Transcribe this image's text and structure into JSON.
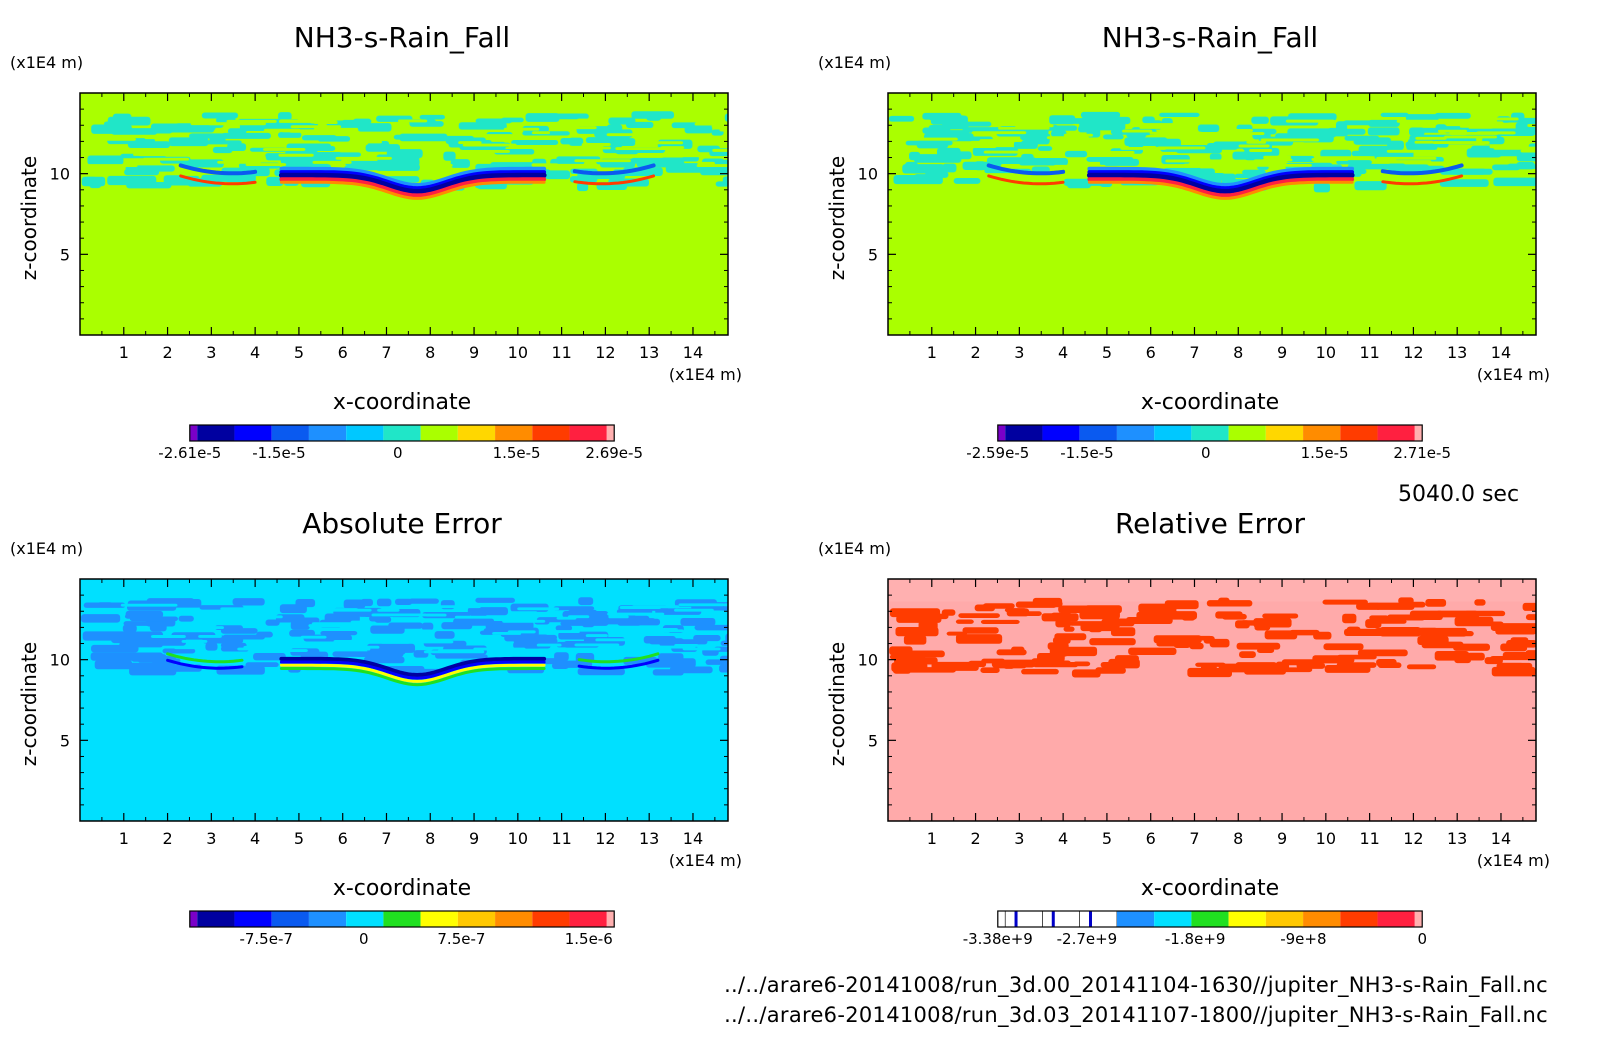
{
  "time_label": "5040.0 sec",
  "footer": {
    "file1": "../../arare6-20141008/run_3d.00_20141104-1630//jupiter_NH3-s-Rain_Fall.nc",
    "file2": "../../arare6-20141008/run_3d.03_20141107-1800//jupiter_NH3-s-Rain_Fall.nc"
  },
  "chart_data": [
    {
      "type": "heatmap",
      "title": "NH3-s-Rain_Fall",
      "xlabel": "x-coordinate",
      "ylabel": "z-coordinate",
      "x_unit": "(x1E4 m)",
      "y_unit": "(x1E4 m)",
      "x_ticks": [
        "1",
        "2",
        "3",
        "4",
        "5",
        "6",
        "7",
        "8",
        "9",
        "10",
        "11",
        "12",
        "13",
        "14"
      ],
      "y_ticks": [
        "5",
        "10"
      ],
      "xlim": [
        0,
        14.8
      ],
      "ylim": [
        0,
        15
      ],
      "background_color": "#aaff00",
      "colorbar": {
        "colors": [
          "#7a00c8",
          "#0000a0",
          "#0000ff",
          "#0a5af0",
          "#1e90ff",
          "#00c8ff",
          "#20e6c8",
          "#aaff00",
          "#ffd700",
          "#ff8c00",
          "#ff3c00",
          "#ff2040",
          "#ffb0b0"
        ],
        "labels": [
          "-2.61e-5",
          "-1.5e-5",
          "0",
          "1.5e-5",
          "2.69e-5"
        ]
      }
    },
    {
      "type": "heatmap",
      "title": "NH3-s-Rain_Fall",
      "xlabel": "x-coordinate",
      "ylabel": "z-coordinate",
      "x_unit": "(x1E4 m)",
      "y_unit": "(x1E4 m)",
      "x_ticks": [
        "1",
        "2",
        "3",
        "4",
        "5",
        "6",
        "7",
        "8",
        "9",
        "10",
        "11",
        "12",
        "13",
        "14"
      ],
      "y_ticks": [
        "5",
        "10"
      ],
      "xlim": [
        0,
        14.8
      ],
      "ylim": [
        0,
        15
      ],
      "background_color": "#aaff00",
      "colorbar": {
        "colors": [
          "#7a00c8",
          "#0000a0",
          "#0000ff",
          "#0a5af0",
          "#1e90ff",
          "#00c8ff",
          "#20e6c8",
          "#aaff00",
          "#ffd700",
          "#ff8c00",
          "#ff3c00",
          "#ff2040",
          "#ffb0b0"
        ],
        "labels": [
          "-2.59e-5",
          "-1.5e-5",
          "0",
          "1.5e-5",
          "2.71e-5"
        ]
      }
    },
    {
      "type": "heatmap",
      "title": "Absolute Error",
      "xlabel": "x-coordinate",
      "ylabel": "z-coordinate",
      "x_unit": "(x1E4 m)",
      "y_unit": "(x1E4 m)",
      "x_ticks": [
        "1",
        "2",
        "3",
        "4",
        "5",
        "6",
        "7",
        "8",
        "9",
        "10",
        "11",
        "12",
        "13",
        "14"
      ],
      "y_ticks": [
        "5",
        "10"
      ],
      "xlim": [
        0,
        14.8
      ],
      "ylim": [
        0,
        15
      ],
      "background_color": "#00e0ff",
      "colorbar": {
        "colors": [
          "#7a00c8",
          "#0000a0",
          "#0000ff",
          "#0a5af0",
          "#1e90ff",
          "#00e0ff",
          "#20e020",
          "#ffff00",
          "#ffc800",
          "#ff8c00",
          "#ff3c00",
          "#ff2040",
          "#ffb0b0"
        ],
        "labels": [
          "-7.5e-7",
          "0",
          "7.5e-7",
          "1.5e-6"
        ]
      }
    },
    {
      "type": "heatmap",
      "title": "Relative Error",
      "xlabel": "x-coordinate",
      "ylabel": "z-coordinate",
      "x_unit": "(x1E4 m)",
      "y_unit": "(x1E4 m)",
      "x_ticks": [
        "1",
        "2",
        "3",
        "4",
        "5",
        "6",
        "7",
        "8",
        "9",
        "10",
        "11",
        "12",
        "13",
        "14"
      ],
      "y_ticks": [
        "5",
        "10"
      ],
      "xlim": [
        0,
        14.8
      ],
      "ylim": [
        0,
        15
      ],
      "background_color": "#ffaaaa",
      "colorbar": {
        "colors": [
          "#ffffff",
          "#ffffff",
          "#ffffff",
          "#ffffff",
          "#1e90ff",
          "#00e0ff",
          "#20e020",
          "#ffff00",
          "#ffc800",
          "#ff8c00",
          "#ff3c00",
          "#ff2040",
          "#ffb0b0"
        ],
        "labels": [
          "-3.38e+9",
          "-2.7e+9",
          "-1.8e+9",
          "-9e+8",
          "0"
        ]
      }
    }
  ]
}
